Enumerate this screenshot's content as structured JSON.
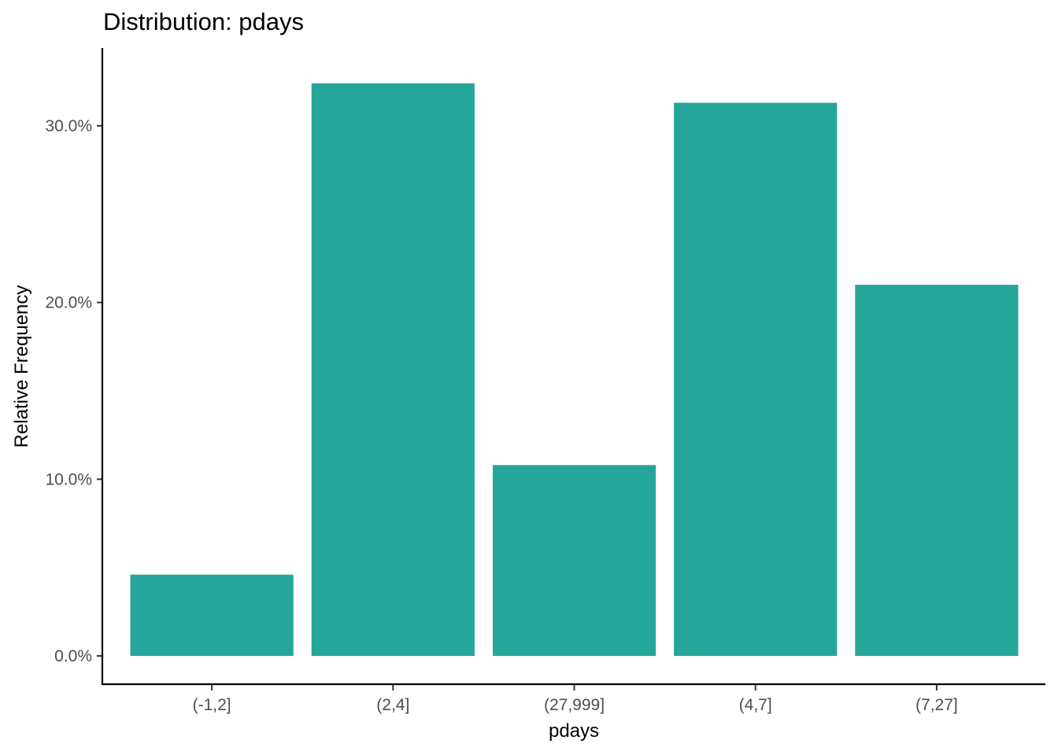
{
  "chart_data": {
    "type": "bar",
    "title": "Distribution: pdays",
    "xlabel": "pdays",
    "ylabel": "Relative Frequency",
    "categories": [
      "(-1,2]",
      "(2,4]",
      "(27,999]",
      "(4,7]",
      "(7,27]"
    ],
    "values": [
      0.046,
      0.324,
      0.108,
      0.313,
      0.21
    ],
    "ylim": [
      -0.016,
      0.344
    ],
    "yticks": [
      0.0,
      0.1,
      0.2,
      0.3
    ],
    "ytick_labels": [
      "0.0%",
      "10.0%",
      "20.0%",
      "30.0%"
    ],
    "bar_color": "#26A69A",
    "grid": false,
    "legend": "none"
  }
}
